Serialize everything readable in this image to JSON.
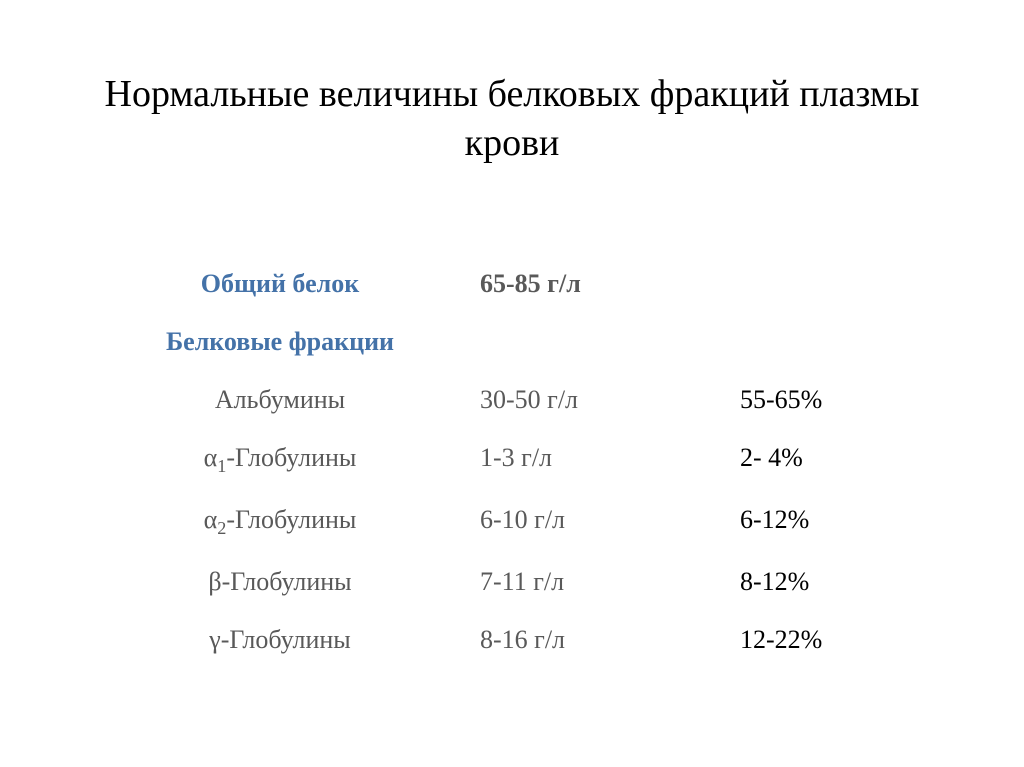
{
  "title": "Нормальные величины белковых фракций плазмы крови",
  "colors": {
    "background": "#ffffff",
    "title_text": "#000000",
    "header_text": "#4472a8",
    "body_text": "#595959",
    "percent_text": "#000000"
  },
  "typography": {
    "font_family": "Times New Roman",
    "title_fontsize": 38,
    "body_fontsize": 26
  },
  "total_protein": {
    "label": "Общий белок",
    "value": "65-85 г/л"
  },
  "fractions_header": "Белковые фракции",
  "fractions": [
    {
      "name": "Альбумины",
      "has_subscript": false,
      "value": "30-50 г/л",
      "percent": "55-65%"
    },
    {
      "name_prefix": "α",
      "subscript": "1",
      "name_suffix": "-Глобулины",
      "has_subscript": true,
      "value": "1-3 г/л",
      "percent": "2- 4%"
    },
    {
      "name_prefix": "α",
      "subscript": "2",
      "name_suffix": "-Глобулины",
      "has_subscript": true,
      "value": "6-10 г/л",
      "percent": "6-12%"
    },
    {
      "name": "β-Глобулины",
      "has_subscript": false,
      "value": "7-11 г/л",
      "percent": "8-12%"
    },
    {
      "name": "γ-Глобулины",
      "has_subscript": false,
      "value": "8-16 г/л",
      "percent": "12-22%"
    }
  ]
}
